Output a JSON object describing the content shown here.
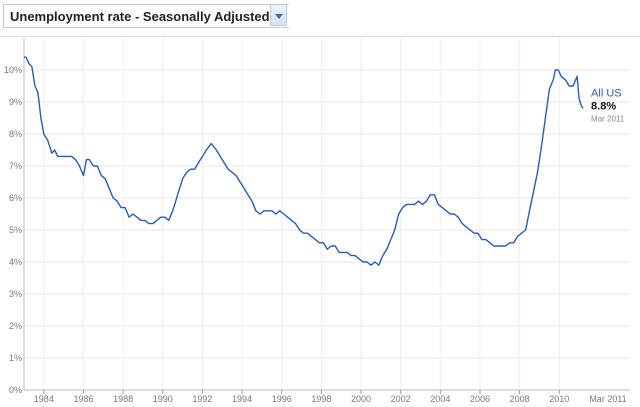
{
  "header": {
    "title": "Unemployment rate - Seasonally Adjusted",
    "help_icon": "question-mark-icon",
    "dropdown_icon": "chevron-down-icon"
  },
  "chart_data": {
    "type": "line",
    "title": "Unemployment rate - Seasonally Adjusted",
    "xlabel": "",
    "ylabel": "",
    "xlim": [
      1983.0,
      2011.5
    ],
    "ylim": [
      0,
      11
    ],
    "x_ticks": [
      "1984",
      "1986",
      "1988",
      "1990",
      "1992",
      "1994",
      "1996",
      "1998",
      "2000",
      "2002",
      "2004",
      "2006",
      "2008",
      "2010"
    ],
    "x_tick_values": [
      1984,
      1986,
      1988,
      1990,
      1992,
      1994,
      1996,
      1998,
      2000,
      2002,
      2004,
      2006,
      2008,
      2010
    ],
    "end_label": "Mar 2011",
    "y_ticks": [
      "0%",
      "1%",
      "2%",
      "3%",
      "4%",
      "5%",
      "6%",
      "7%",
      "8%",
      "9%",
      "10%"
    ],
    "y_tick_values": [
      0,
      1,
      2,
      3,
      4,
      5,
      6,
      7,
      8,
      9,
      10
    ],
    "grid": true,
    "line_color": "#2a5db0",
    "series": [
      {
        "name": "All US",
        "last_value_label": "8.8%",
        "last_date_label": "Mar 2011",
        "x": [
          1983.0,
          1983.1,
          1983.25,
          1983.4,
          1983.55,
          1983.7,
          1983.85,
          1984.0,
          1984.2,
          1984.4,
          1984.55,
          1984.7,
          1984.85,
          1985.0,
          1985.2,
          1985.4,
          1985.6,
          1985.8,
          1986.0,
          1986.15,
          1986.3,
          1986.5,
          1986.7,
          1986.9,
          1987.1,
          1987.3,
          1987.5,
          1987.7,
          1987.9,
          1988.1,
          1988.3,
          1988.5,
          1988.7,
          1988.9,
          1989.1,
          1989.3,
          1989.5,
          1989.7,
          1989.9,
          1990.1,
          1990.3,
          1990.5,
          1990.65,
          1990.8,
          1991.0,
          1991.2,
          1991.4,
          1991.6,
          1991.8,
          1992.0,
          1992.2,
          1992.45,
          1992.7,
          1992.9,
          1993.1,
          1993.3,
          1993.5,
          1993.7,
          1993.9,
          1994.1,
          1994.3,
          1994.5,
          1994.7,
          1994.9,
          1995.1,
          1995.3,
          1995.5,
          1995.7,
          1995.9,
          1996.1,
          1996.3,
          1996.5,
          1996.7,
          1996.9,
          1997.1,
          1997.3,
          1997.5,
          1997.7,
          1997.9,
          1998.1,
          1998.3,
          1998.5,
          1998.7,
          1998.9,
          1999.1,
          1999.3,
          1999.5,
          1999.7,
          1999.9,
          2000.1,
          2000.3,
          2000.5,
          2000.7,
          2000.9,
          2001.1,
          2001.3,
          2001.5,
          2001.7,
          2001.9,
          2002.1,
          2002.3,
          2002.5,
          2002.7,
          2002.9,
          2003.1,
          2003.3,
          2003.5,
          2003.7,
          2003.9,
          2004.1,
          2004.3,
          2004.5,
          2004.7,
          2004.9,
          2005.1,
          2005.3,
          2005.5,
          2005.7,
          2005.9,
          2006.1,
          2006.3,
          2006.5,
          2006.7,
          2006.9,
          2007.1,
          2007.3,
          2007.5,
          2007.7,
          2007.9,
          2008.1,
          2008.3,
          2008.5,
          2008.7,
          2008.9,
          2009.1,
          2009.3,
          2009.5,
          2009.7,
          2009.8,
          2009.95,
          2010.1,
          2010.3,
          2010.5,
          2010.7,
          2010.9,
          2011.0,
          2011.1,
          2011.2
        ],
        "y": [
          10.4,
          10.4,
          10.2,
          10.1,
          9.5,
          9.3,
          8.5,
          8.0,
          7.8,
          7.4,
          7.5,
          7.3,
          7.3,
          7.3,
          7.3,
          7.3,
          7.2,
          7.0,
          6.7,
          7.2,
          7.2,
          7.0,
          7.0,
          6.7,
          6.6,
          6.3,
          6.0,
          5.9,
          5.7,
          5.7,
          5.4,
          5.5,
          5.4,
          5.3,
          5.3,
          5.2,
          5.2,
          5.3,
          5.4,
          5.4,
          5.3,
          5.6,
          5.9,
          6.2,
          6.6,
          6.8,
          6.9,
          6.9,
          7.1,
          7.3,
          7.5,
          7.7,
          7.5,
          7.3,
          7.1,
          6.9,
          6.8,
          6.7,
          6.5,
          6.3,
          6.1,
          5.9,
          5.6,
          5.5,
          5.6,
          5.6,
          5.6,
          5.5,
          5.6,
          5.5,
          5.4,
          5.3,
          5.2,
          5.0,
          4.9,
          4.9,
          4.8,
          4.7,
          4.6,
          4.6,
          4.4,
          4.5,
          4.5,
          4.3,
          4.3,
          4.3,
          4.2,
          4.2,
          4.1,
          4.0,
          4.0,
          3.9,
          4.0,
          3.9,
          4.2,
          4.4,
          4.7,
          5.0,
          5.5,
          5.7,
          5.8,
          5.8,
          5.8,
          5.9,
          5.8,
          5.9,
          6.1,
          6.1,
          5.8,
          5.7,
          5.6,
          5.5,
          5.5,
          5.4,
          5.2,
          5.1,
          5.0,
          4.9,
          4.9,
          4.7,
          4.7,
          4.6,
          4.5,
          4.5,
          4.5,
          4.5,
          4.6,
          4.6,
          4.8,
          4.9,
          5.0,
          5.6,
          6.2,
          6.8,
          7.6,
          8.5,
          9.4,
          9.7,
          10.0,
          10.0,
          9.8,
          9.7,
          9.5,
          9.5,
          9.8,
          9.1,
          8.9,
          8.8
        ]
      }
    ]
  }
}
